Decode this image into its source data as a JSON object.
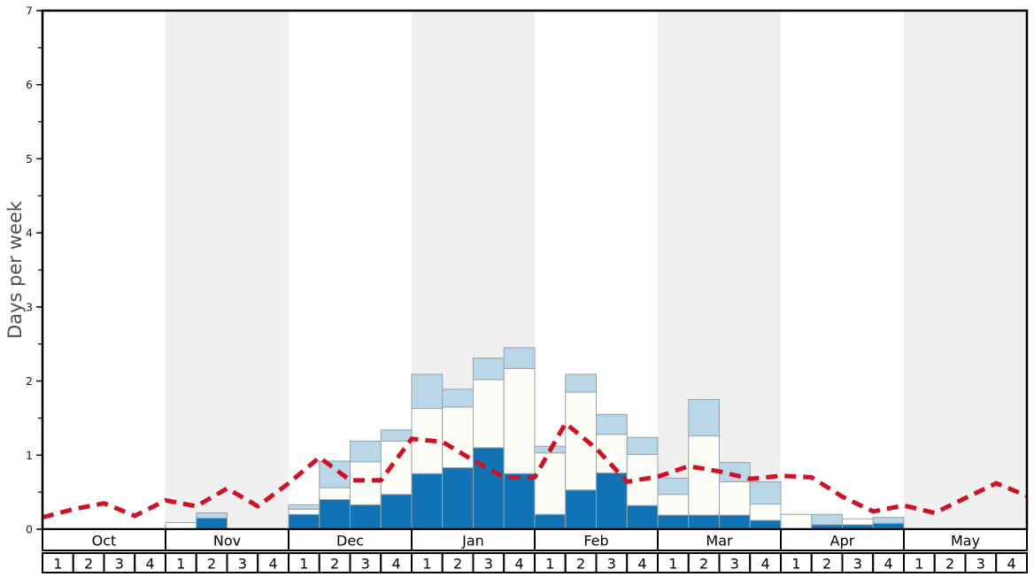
{
  "y_axis": {
    "label": "Days per week",
    "min": 0,
    "max": 7,
    "major_tick_labels": [
      "0",
      "1",
      "2",
      "3",
      "4",
      "5",
      "6",
      "7"
    ],
    "minor_tick_step": 0.5
  },
  "x_axis": {
    "months": [
      "Oct",
      "Nov",
      "Dec",
      "Jan",
      "Feb",
      "Mar",
      "Apr",
      "May"
    ],
    "week_labels": [
      "1",
      "2",
      "3",
      "4"
    ],
    "shaded_month_indices": [
      1,
      3,
      5,
      7
    ]
  },
  "colors": {
    "dark_blue": "#1173b4",
    "white_bar": "#fdfdf8",
    "light_blue": "#b9d7e7",
    "red_line": "#cf1125",
    "band_gray": "#f0f0f0",
    "bar_border": "#98a3aa",
    "axis": "#000000",
    "tick_label": "#1a1a1a",
    "y_label": "#4d4d4d"
  },
  "chart_data": {
    "type": "bar",
    "subtype": "stacked_bars_with_dashed_line_overlay",
    "title": "",
    "xlabel": "",
    "ylabel": "Days per week",
    "ylim": [
      0,
      7
    ],
    "grid": "none",
    "legend": "none",
    "background_bands": "alternating months shaded light gray (Nov, Jan, Mar, May)",
    "categories": [
      "Oct-1",
      "Oct-2",
      "Oct-3",
      "Oct-4",
      "Nov-1",
      "Nov-2",
      "Nov-3",
      "Nov-4",
      "Dec-1",
      "Dec-2",
      "Dec-3",
      "Dec-4",
      "Jan-1",
      "Jan-2",
      "Jan-3",
      "Jan-4",
      "Feb-1",
      "Feb-2",
      "Feb-3",
      "Feb-4",
      "Mar-1",
      "Mar-2",
      "Mar-3",
      "Mar-4",
      "Apr-1",
      "Apr-2",
      "Apr-3",
      "Apr-4",
      "May-1",
      "May-2",
      "May-3",
      "May-4"
    ],
    "series": [
      {
        "name": "dark-blue-days",
        "color_key": "dark_blue",
        "values": [
          0,
          0,
          0,
          0,
          0,
          0.15,
          0,
          0,
          0.2,
          0.4,
          0.33,
          0.47,
          0.75,
          0.83,
          1.1,
          0.75,
          0.2,
          0.53,
          0.76,
          0.32,
          0.19,
          0.19,
          0.19,
          0.12,
          0,
          0.06,
          0.06,
          0.08,
          0,
          0,
          0,
          0
        ]
      },
      {
        "name": "white-days",
        "color_key": "white_bar",
        "values": [
          0,
          0,
          0,
          0,
          0.09,
          0,
          0,
          0,
          0.07,
          0.16,
          0.58,
          0.72,
          0.88,
          0.82,
          0.92,
          1.42,
          0.83,
          1.32,
          0.52,
          0.69,
          0.28,
          1.07,
          0.45,
          0.22,
          0.2,
          0,
          0.08,
          0,
          0,
          0,
          0,
          0
        ]
      },
      {
        "name": "light-blue-days",
        "color_key": "light_blue",
        "values": [
          0,
          0,
          0,
          0,
          0,
          0.07,
          0,
          0,
          0.06,
          0.36,
          0.28,
          0.15,
          0.46,
          0.24,
          0.29,
          0.28,
          0.09,
          0.24,
          0.27,
          0.23,
          0.22,
          0.49,
          0.26,
          0.3,
          0,
          0.14,
          0,
          0.08,
          0,
          0,
          0,
          0
        ]
      }
    ],
    "line": {
      "name": "red-dashed-trend",
      "color_key": "red_line",
      "style": "dashed",
      "x_unit": "week boundary index 0-32 (start of Oct week 1 to end of May week 4)",
      "values": [
        0.16,
        0.27,
        0.35,
        0.18,
        0.39,
        0.31,
        0.55,
        0.31,
        0.62,
        0.97,
        0.66,
        0.66,
        1.22,
        1.18,
        0.93,
        0.7,
        0.7,
        1.43,
        1.09,
        0.64,
        0.71,
        0.85,
        0.78,
        0.68,
        0.72,
        0.7,
        0.44,
        0.24,
        0.32,
        0.22,
        0.42,
        0.62,
        0.45
      ]
    }
  }
}
